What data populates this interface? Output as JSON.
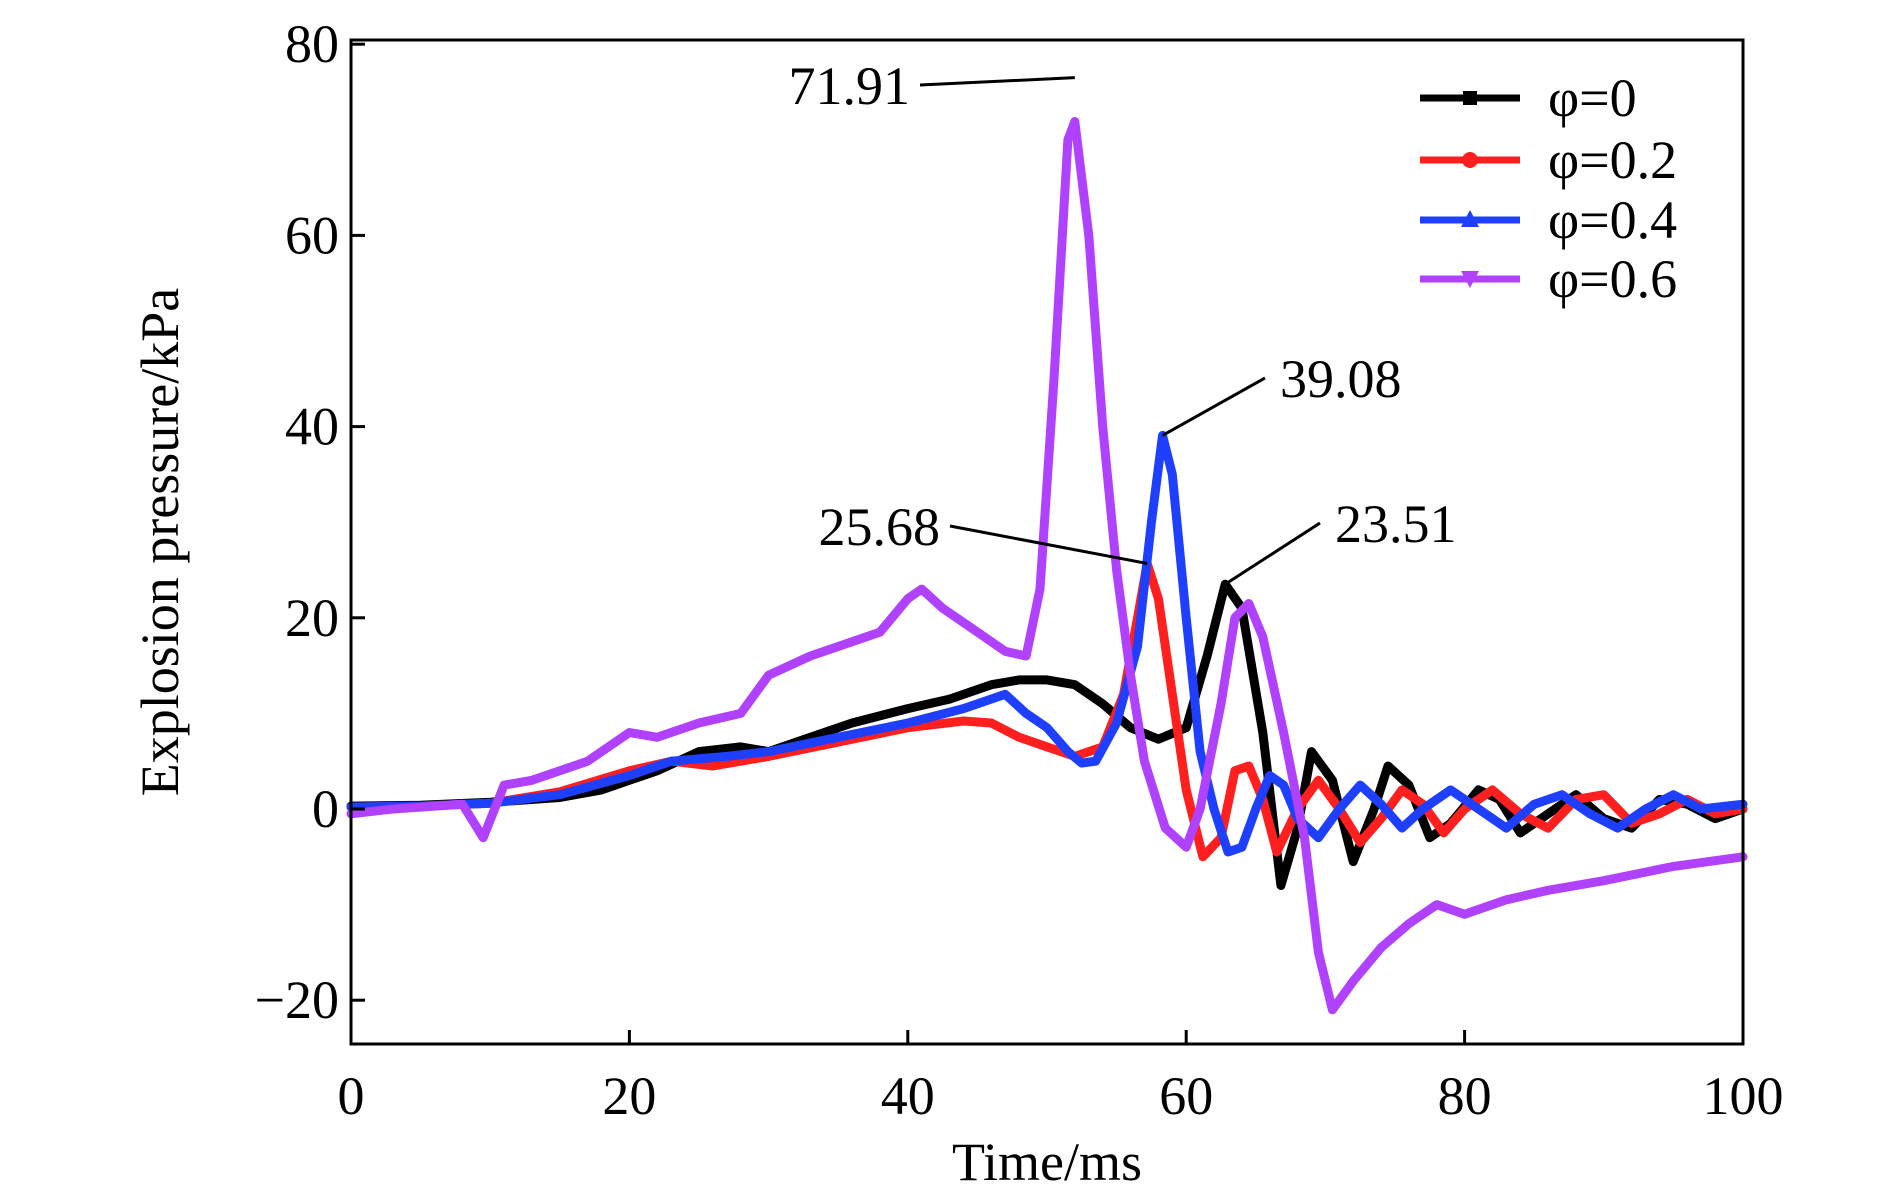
{
  "chart_data": {
    "type": "line",
    "xlabel": "Time/ms",
    "ylabel": "Explosion pressure/kPa",
    "xlim": [
      0,
      100
    ],
    "ylim": [
      -25,
      80
    ],
    "xticks": [
      0,
      20,
      40,
      60,
      80,
      100
    ],
    "yticks": [
      -20,
      0,
      20,
      40,
      60,
      80
    ],
    "x_tick_labels": [
      "0",
      "20",
      "40",
      "60",
      "80",
      "100"
    ],
    "y_tick_labels": [
      "−20",
      "0",
      "20",
      "40",
      "60",
      "80"
    ],
    "grid": false,
    "legend_position": "top-right",
    "series": [
      {
        "name": "φ=0",
        "color": "#000000",
        "marker": "square",
        "points": [
          [
            0,
            0.3
          ],
          [
            5,
            0.4
          ],
          [
            10,
            0.7
          ],
          [
            15,
            1.2
          ],
          [
            18,
            2
          ],
          [
            20,
            3
          ],
          [
            22,
            4
          ],
          [
            25,
            6
          ],
          [
            28,
            6.5
          ],
          [
            30,
            6
          ],
          [
            33,
            7.5
          ],
          [
            36,
            9
          ],
          [
            40,
            10.5
          ],
          [
            43,
            11.5
          ],
          [
            46,
            13
          ],
          [
            48,
            13.5
          ],
          [
            50,
            13.5
          ],
          [
            52,
            13
          ],
          [
            54,
            11
          ],
          [
            56,
            8.5
          ],
          [
            58,
            7.3
          ],
          [
            60,
            8.5
          ],
          [
            61.5,
            16
          ],
          [
            62.8,
            23.51
          ],
          [
            64,
            21
          ],
          [
            65.5,
            8
          ],
          [
            66.8,
            -8
          ],
          [
            68,
            -2
          ],
          [
            69,
            6
          ],
          [
            70.5,
            3
          ],
          [
            72,
            -5.5
          ],
          [
            73.5,
            0
          ],
          [
            74.5,
            4.5
          ],
          [
            76,
            2.5
          ],
          [
            77.5,
            -3
          ],
          [
            79,
            -1.5
          ],
          [
            81,
            2
          ],
          [
            82.5,
            1
          ],
          [
            84,
            -2.5
          ],
          [
            86,
            -0.5
          ],
          [
            88,
            1.5
          ],
          [
            90,
            -1
          ],
          [
            92,
            -2
          ],
          [
            94,
            1
          ],
          [
            96,
            0.5
          ],
          [
            98,
            -1
          ],
          [
            100,
            0
          ]
        ]
      },
      {
        "name": "φ=0.2",
        "color": "#ff1f1f",
        "marker": "circle",
        "points": [
          [
            0,
            0.2
          ],
          [
            5,
            0.3
          ],
          [
            10,
            0.6
          ],
          [
            15,
            1.8
          ],
          [
            20,
            4
          ],
          [
            23,
            5
          ],
          [
            26,
            4.5
          ],
          [
            30,
            5.5
          ],
          [
            35,
            7
          ],
          [
            40,
            8.5
          ],
          [
            44,
            9.2
          ],
          [
            46,
            9
          ],
          [
            48,
            7.5
          ],
          [
            50,
            6.5
          ],
          [
            52,
            5.5
          ],
          [
            54,
            6.5
          ],
          [
            55.5,
            12
          ],
          [
            56.5,
            20
          ],
          [
            57.2,
            25.68
          ],
          [
            58,
            22
          ],
          [
            59,
            12
          ],
          [
            60,
            2
          ],
          [
            61.2,
            -5
          ],
          [
            62.5,
            -3
          ],
          [
            63.5,
            4
          ],
          [
            64.5,
            4.5
          ],
          [
            65.5,
            1
          ],
          [
            66.5,
            -4.5
          ],
          [
            68,
            0
          ],
          [
            69.5,
            3
          ],
          [
            71,
            0
          ],
          [
            72.5,
            -3.5
          ],
          [
            74,
            -1
          ],
          [
            75.5,
            2
          ],
          [
            77,
            0.5
          ],
          [
            78.5,
            -2.5
          ],
          [
            80,
            0
          ],
          [
            82,
            2
          ],
          [
            84,
            -0.5
          ],
          [
            86,
            -2
          ],
          [
            88,
            1
          ],
          [
            90,
            1.5
          ],
          [
            92,
            -1.5
          ],
          [
            94,
            -0.5
          ],
          [
            96,
            1
          ],
          [
            98,
            -0.5
          ],
          [
            100,
            0
          ]
        ]
      },
      {
        "name": "φ=0.4",
        "color": "#1f3fff",
        "marker": "triangle-up",
        "points": [
          [
            0,
            0.2
          ],
          [
            5,
            0.3
          ],
          [
            10,
            0.6
          ],
          [
            15,
            1.5
          ],
          [
            20,
            3.5
          ],
          [
            23,
            5
          ],
          [
            27,
            5.5
          ],
          [
            30,
            6
          ],
          [
            35,
            7.5
          ],
          [
            40,
            9
          ],
          [
            44,
            10.5
          ],
          [
            47,
            12
          ],
          [
            48.5,
            10
          ],
          [
            50,
            8.5
          ],
          [
            51.5,
            6
          ],
          [
            52.5,
            4.8
          ],
          [
            53.5,
            5
          ],
          [
            55,
            9
          ],
          [
            56.5,
            17
          ],
          [
            57.5,
            30
          ],
          [
            58.3,
            39.08
          ],
          [
            59,
            35
          ],
          [
            60,
            20
          ],
          [
            61,
            6
          ],
          [
            62,
            0
          ],
          [
            63,
            -4.5
          ],
          [
            64,
            -4
          ],
          [
            65,
            0
          ],
          [
            66,
            3.5
          ],
          [
            67,
            2.5
          ],
          [
            68,
            -1
          ],
          [
            69.5,
            -3
          ],
          [
            71,
            0
          ],
          [
            72.5,
            2.5
          ],
          [
            74,
            0.5
          ],
          [
            75.5,
            -2
          ],
          [
            77,
            0
          ],
          [
            79,
            2
          ],
          [
            81,
            0
          ],
          [
            83,
            -2
          ],
          [
            85,
            0.5
          ],
          [
            87,
            1.5
          ],
          [
            89,
            -0.5
          ],
          [
            91,
            -2
          ],
          [
            93,
            0
          ],
          [
            95,
            1.5
          ],
          [
            97,
            0
          ],
          [
            100,
            0.5
          ]
        ]
      },
      {
        "name": "φ=0.6",
        "color": "#b042ff",
        "marker": "triangle-down",
        "points": [
          [
            0,
            -0.5
          ],
          [
            3,
            0
          ],
          [
            8,
            0.5
          ],
          [
            9.5,
            -3
          ],
          [
            11,
            2.5
          ],
          [
            13,
            3
          ],
          [
            15,
            4
          ],
          [
            17,
            5
          ],
          [
            18,
            6
          ],
          [
            20,
            8
          ],
          [
            22,
            7.5
          ],
          [
            25,
            9
          ],
          [
            28,
            10
          ],
          [
            30,
            14
          ],
          [
            33,
            16
          ],
          [
            35,
            17
          ],
          [
            38,
            18.5
          ],
          [
            40,
            22
          ],
          [
            41,
            23
          ],
          [
            42.5,
            21
          ],
          [
            45,
            18.5
          ],
          [
            47,
            16.5
          ],
          [
            48.5,
            16
          ],
          [
            49.5,
            23
          ],
          [
            50.5,
            45
          ],
          [
            51.5,
            70
          ],
          [
            52,
            71.91
          ],
          [
            53,
            60
          ],
          [
            54,
            40
          ],
          [
            55,
            25
          ],
          [
            56,
            14
          ],
          [
            57,
            5
          ],
          [
            58.5,
            -2
          ],
          [
            60,
            -4
          ],
          [
            61,
            0
          ],
          [
            62.5,
            11
          ],
          [
            63.5,
            20
          ],
          [
            64.5,
            21.5
          ],
          [
            65.5,
            18
          ],
          [
            67,
            8
          ],
          [
            68.5,
            -3
          ],
          [
            69.5,
            -15
          ],
          [
            70.5,
            -21
          ],
          [
            72,
            -18
          ],
          [
            74,
            -14.5
          ],
          [
            76,
            -12
          ],
          [
            78,
            -10
          ],
          [
            80,
            -11
          ],
          [
            83,
            -9.5
          ],
          [
            86,
            -8.5
          ],
          [
            90,
            -7.5
          ],
          [
            95,
            -6
          ],
          [
            100,
            -5
          ]
        ]
      }
    ],
    "annotations": [
      {
        "text": "71.91",
        "x": 52,
        "y": 76.5
      },
      {
        "text": "39.08",
        "x": 58.3,
        "y": 39.08
      },
      {
        "text": "25.68",
        "x": 57.2,
        "y": 25.68
      },
      {
        "text": "23.51",
        "x": 62.8,
        "y": 23.51
      }
    ]
  }
}
